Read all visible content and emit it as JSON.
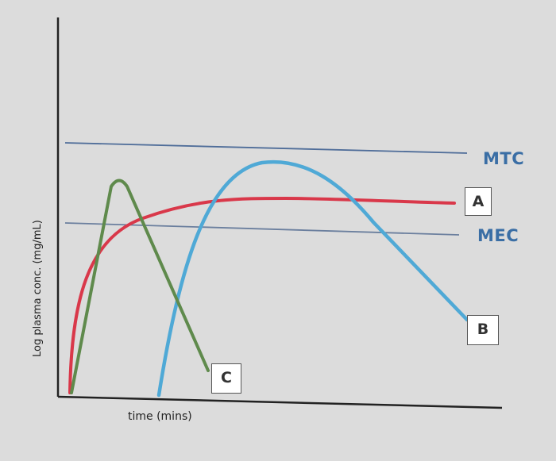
{
  "chart_data": {
    "type": "line",
    "title": "",
    "xlabel": "time (mins)",
    "ylabel": "Log plasma conc. (mg/mL)",
    "grid": false,
    "x_ticks": false,
    "y_ticks": false,
    "reference_lines": [
      {
        "label": "MTC",
        "color": "#4f6d99"
      },
      {
        "label": "MEC",
        "color": "#6b7f9e"
      }
    ],
    "series": [
      {
        "name": "A",
        "color": "#d9384a",
        "shape": "rapid rise then plateau just above MEC, below MTC"
      },
      {
        "name": "B",
        "color": "#4fa9d6",
        "shape": "delayed rise, peak just below MTC, then decline below MEC"
      },
      {
        "name": "C",
        "color": "#5f8a4c",
        "shape": "rapid rise to peak above MEC, rapid fall"
      }
    ]
  }
}
